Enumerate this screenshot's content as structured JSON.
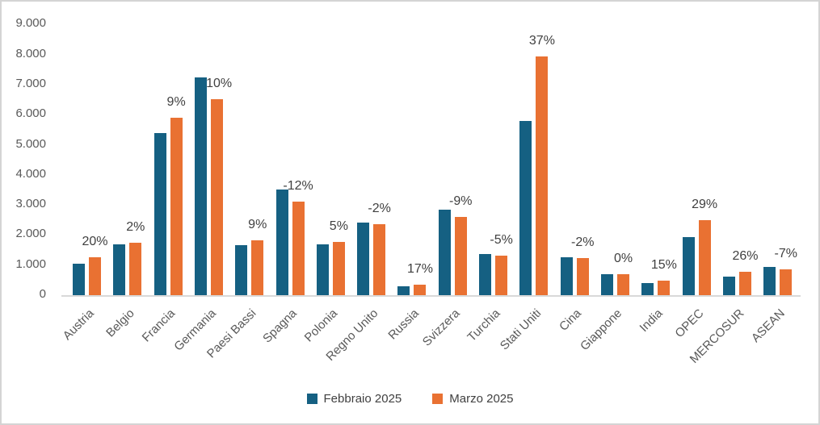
{
  "chart_data": {
    "type": "bar",
    "title": "",
    "categories": [
      "Austria",
      "Belgio",
      "Francia",
      "Germania",
      "Paesi Bassi",
      "Spagna",
      "Polonia",
      "Regno Unito",
      "Russia",
      "Svizzera",
      "Turchia",
      "Stati Uniti",
      "Cina",
      "Giappone",
      "India",
      "OPEC",
      "MERCOSUR",
      "ASEAN"
    ],
    "series": [
      {
        "name": "Febbraio 2025",
        "color": "#156082",
        "values": [
          1050,
          1700,
          5400,
          7250,
          1670,
          3500,
          1700,
          2400,
          290,
          2850,
          1370,
          5790,
          1270,
          710,
          415,
          1930,
          620,
          925
        ]
      },
      {
        "name": "Marzo 2025",
        "color": "#E97132",
        "values": [
          1265,
          1735,
          5890,
          6520,
          1820,
          3100,
          1780,
          2350,
          340,
          2590,
          1305,
          7930,
          1245,
          710,
          480,
          2490,
          780,
          860
        ]
      }
    ],
    "change_labels": [
      "20%",
      "2%",
      "9%",
      "-10%",
      "9%",
      "-12%",
      "5%",
      "-2%",
      "17%",
      "-9%",
      "-5%",
      "37%",
      "-2%",
      "0%",
      "15%",
      "29%",
      "26%",
      "-7%"
    ],
    "y_axis": {
      "min": 0,
      "max": 9000,
      "step": 1000,
      "tick_labels": [
        "0",
        "1.000",
        "2.000",
        "3.000",
        "4.000",
        "5.000",
        "6.000",
        "7.000",
        "8.000",
        "9.000"
      ]
    },
    "xlabel": "",
    "ylabel": "",
    "grid": false,
    "legend_position": "bottom",
    "background_color": "#FFFFFF",
    "axis_line_color": "#D9D9D9",
    "axis_text_color": "#595959",
    "data_label_color": "#404040"
  }
}
